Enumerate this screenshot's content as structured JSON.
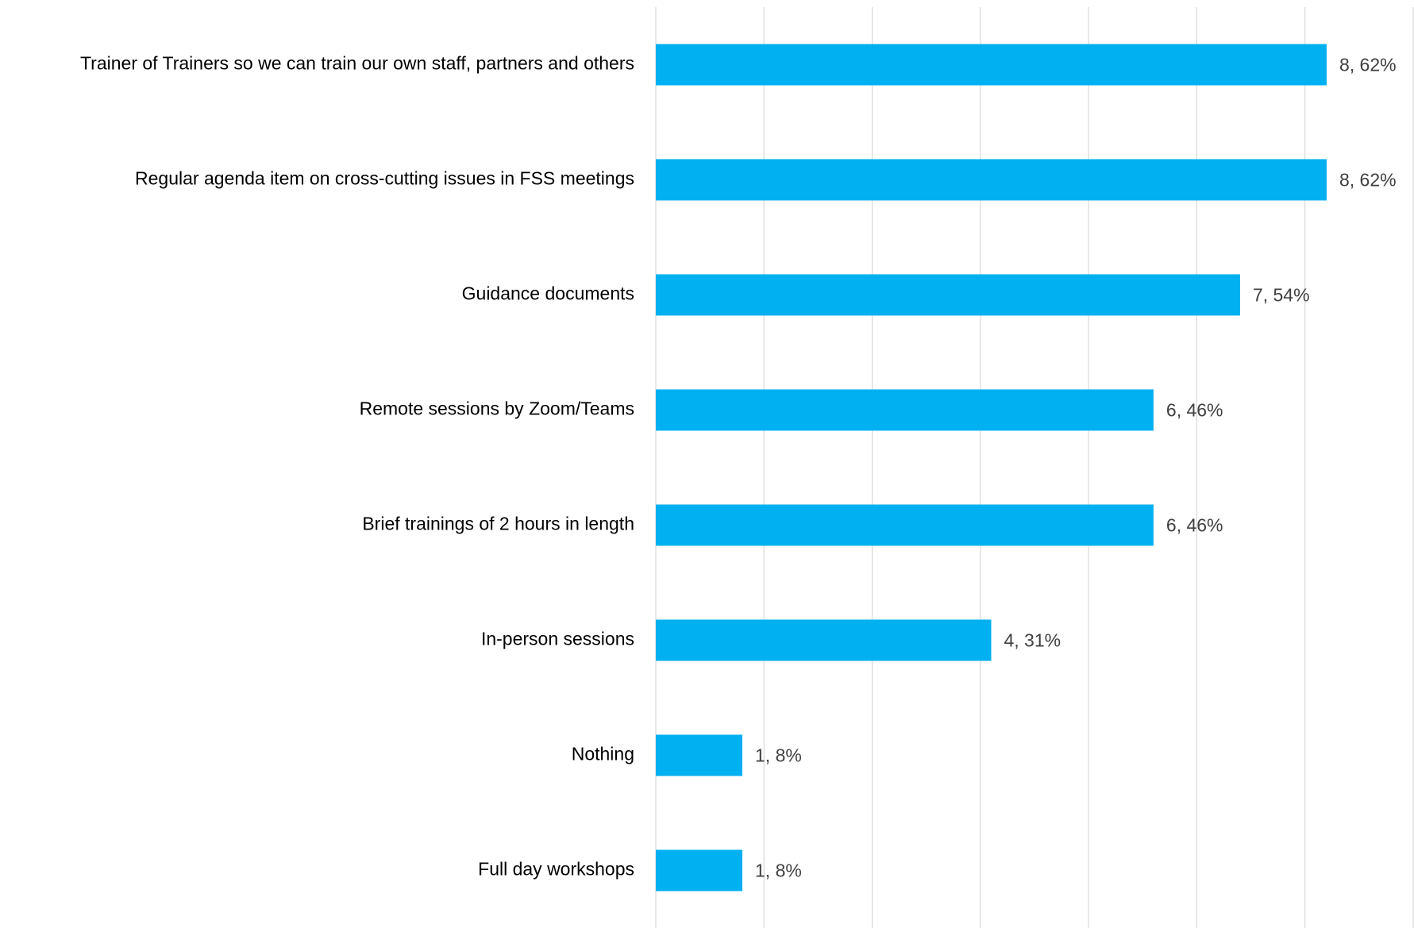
{
  "chart_data": {
    "type": "bar",
    "orientation": "horizontal",
    "categories": [
      "Trainer of Trainers so we can train our own staff, partners and others",
      "Regular agenda item on cross-cutting issues in FSS meetings",
      "Guidance documents",
      "Remote sessions by Zoom/Teams",
      "Brief trainings of 2 hours in length",
      "In-person sessions",
      "Nothing",
      "Full day workshops"
    ],
    "values": [
      62,
      62,
      54,
      46,
      46,
      31,
      8,
      8
    ],
    "value_labels": [
      "8, 62%",
      "8, 62%",
      "7, 54%",
      "6, 46%",
      "6, 46%",
      "4, 31%",
      "1, 8%",
      "1, 8%"
    ],
    "color": "#00b0f0",
    "xlim": [
      0,
      70
    ],
    "xticks": [
      0,
      10,
      20,
      30,
      40,
      50,
      60,
      70
    ],
    "grid": true
  }
}
